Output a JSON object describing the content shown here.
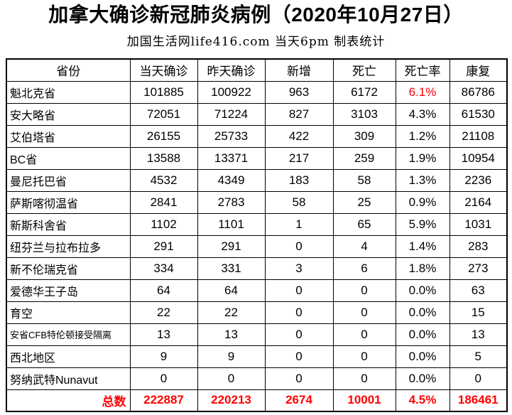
{
  "title": "加拿大确诊新冠肺炎病例（2020年10月27日）",
  "subtitle": "加国生活网life416.com 当天6pm 制表统计",
  "colors": {
    "accent_red": "#ff0000",
    "text": "#000000",
    "border": "#000000",
    "background": "#ffffff"
  },
  "chart_data": {
    "type": "table",
    "title": "加拿大确诊新冠肺炎病例（2020年10月27日）",
    "subtitle": "加国生活网life416.com 当天6pm 制表统计",
    "columns": [
      "省份",
      "当天确诊",
      "昨天确诊",
      "新增",
      "死亡",
      "死亡率",
      "康复"
    ],
    "rows": [
      {
        "province": "魁北克省",
        "today": "101885",
        "yesterday": "100922",
        "new": "963",
        "deaths": "6172",
        "death_rate": "6.1%",
        "recovered": "86786",
        "rate_style": "red-bold",
        "small_label": false
      },
      {
        "province": "安大略省",
        "today": "72051",
        "yesterday": "71224",
        "new": "827",
        "deaths": "3103",
        "death_rate": "4.3%",
        "recovered": "61530",
        "rate_style": "regular",
        "small_label": false
      },
      {
        "province": "艾伯塔省",
        "today": "26155",
        "yesterday": "25733",
        "new": "422",
        "deaths": "309",
        "death_rate": "1.2%",
        "recovered": "21108",
        "rate_style": "bold",
        "small_label": false
      },
      {
        "province": "BC省",
        "today": "13588",
        "yesterday": "13371",
        "new": "217",
        "deaths": "259",
        "death_rate": "1.9%",
        "recovered": "10954",
        "rate_style": "bold",
        "small_label": false
      },
      {
        "province": "曼尼托巴省",
        "today": "4532",
        "yesterday": "4349",
        "new": "183",
        "deaths": "58",
        "death_rate": "1.3%",
        "recovered": "2236",
        "rate_style": "bold",
        "small_label": false
      },
      {
        "province": "萨斯喀彻温省",
        "today": "2841",
        "yesterday": "2783",
        "new": "58",
        "deaths": "25",
        "death_rate": "0.9%",
        "recovered": "2164",
        "rate_style": "bold",
        "small_label": false
      },
      {
        "province": "新斯科舍省",
        "today": "1102",
        "yesterday": "1101",
        "new": "1",
        "deaths": "65",
        "death_rate": "5.9%",
        "recovered": "1031",
        "rate_style": "bold",
        "small_label": false
      },
      {
        "province": "纽芬兰与拉布拉多",
        "today": "291",
        "yesterday": "291",
        "new": "0",
        "deaths": "4",
        "death_rate": "1.4%",
        "recovered": "283",
        "rate_style": "bold",
        "small_label": false
      },
      {
        "province": "新不伦瑞克省",
        "today": "334",
        "yesterday": "331",
        "new": "3",
        "deaths": "6",
        "death_rate": "1.8%",
        "recovered": "273",
        "rate_style": "bold",
        "small_label": false
      },
      {
        "province": "爱德华王子岛",
        "today": "64",
        "yesterday": "64",
        "new": "0",
        "deaths": "0",
        "death_rate": "0.0%",
        "recovered": "63",
        "rate_style": "bold",
        "small_label": false
      },
      {
        "province": "育空",
        "today": "22",
        "yesterday": "22",
        "new": "0",
        "deaths": "0",
        "death_rate": "0.0%",
        "recovered": "15",
        "rate_style": "bold",
        "small_label": false
      },
      {
        "province": "安省CFB特伦顿接受隔离",
        "today": "13",
        "yesterday": "13",
        "new": "0",
        "deaths": "0",
        "death_rate": "0.0%",
        "recovered": "13",
        "rate_style": "bold",
        "small_label": true
      },
      {
        "province": "西北地区",
        "today": "9",
        "yesterday": "9",
        "new": "0",
        "deaths": "0",
        "death_rate": "0.0%",
        "recovered": "5",
        "rate_style": "bold",
        "small_label": false
      },
      {
        "province": "努纳武特Nunavut",
        "today": "0",
        "yesterday": "0",
        "new": "0",
        "deaths": "0",
        "death_rate": "0.0%",
        "recovered": "0",
        "rate_style": "bold",
        "small_label": false
      }
    ],
    "total": {
      "label": "总数",
      "today": "222887",
      "yesterday": "220213",
      "new": "2674",
      "deaths": "10001",
      "death_rate": "4.5%",
      "recovered": "186461"
    }
  }
}
